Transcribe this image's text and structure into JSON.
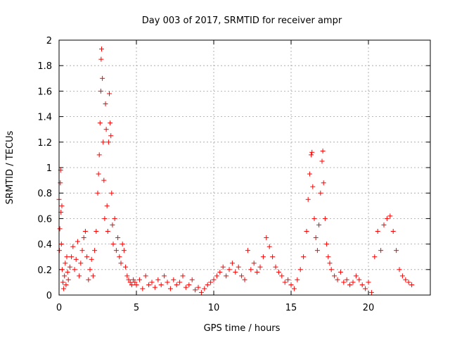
{
  "chart_data": {
    "type": "scatter",
    "title": "Day 003 of 2017, SRMTID for receiver ampr",
    "xlabel": "GPS time / hours",
    "ylabel": "SRMTID / TECUs",
    "xlim": [
      0,
      24
    ],
    "ylim": [
      0,
      2
    ],
    "x_ticks": [
      "0",
      "5",
      "10",
      "15",
      "20"
    ],
    "x_tick_values": [
      0,
      5,
      10,
      15,
      20
    ],
    "y_ticks": [
      "0",
      "0.2",
      "0.4",
      "0.6",
      "0.8",
      "1",
      "1.2",
      "1.4",
      "1.6",
      "1.8",
      "2"
    ],
    "y_tick_values": [
      0,
      0.2,
      0.4,
      0.6,
      0.8,
      1.0,
      1.2,
      1.4,
      1.6,
      1.8,
      2.0
    ],
    "grid": true,
    "marker": "plus",
    "color": "#ff0000",
    "series": [
      {
        "points": [
          [
            0.0,
            0.75
          ],
          [
            0.02,
            0.35
          ],
          [
            0.05,
            0.52
          ],
          [
            0.08,
            0.88
          ],
          [
            0.1,
            0.98
          ],
          [
            0.12,
            0.65
          ],
          [
            0.15,
            0.4
          ],
          [
            0.18,
            0.7
          ],
          [
            0.2,
            0.2
          ],
          [
            0.25,
            0.1
          ],
          [
            0.3,
            0.05
          ],
          [
            0.35,
            0.15
          ],
          [
            0.4,
            0.25
          ],
          [
            0.45,
            0.08
          ],
          [
            0.5,
            0.3
          ],
          [
            0.55,
            0.18
          ],
          [
            0.6,
            0.12
          ],
          [
            0.7,
            0.22
          ],
          [
            0.8,
            0.3
          ],
          [
            0.9,
            0.38
          ],
          [
            1.0,
            0.2
          ],
          [
            1.1,
            0.28
          ],
          [
            1.2,
            0.42
          ],
          [
            1.3,
            0.15
          ],
          [
            1.4,
            0.25
          ],
          [
            1.5,
            0.35
          ],
          [
            1.6,
            0.45
          ],
          [
            1.7,
            0.5
          ],
          [
            1.8,
            0.3
          ],
          [
            1.9,
            0.12
          ],
          [
            2.0,
            0.2
          ],
          [
            2.1,
            0.28
          ],
          [
            2.2,
            0.15
          ],
          [
            2.3,
            0.35
          ],
          [
            2.4,
            0.5
          ],
          [
            2.5,
            0.8
          ],
          [
            2.55,
            0.95
          ],
          [
            2.6,
            1.1
          ],
          [
            2.65,
            1.35
          ],
          [
            2.7,
            1.6
          ],
          [
            2.72,
            1.85
          ],
          [
            2.75,
            1.93
          ],
          [
            2.8,
            1.7
          ],
          [
            2.85,
            1.2
          ],
          [
            2.9,
            0.9
          ],
          [
            2.95,
            0.6
          ],
          [
            3.0,
            1.5
          ],
          [
            3.05,
            1.3
          ],
          [
            3.1,
            0.7
          ],
          [
            3.15,
            0.5
          ],
          [
            3.2,
            1.2
          ],
          [
            3.25,
            1.58
          ],
          [
            3.3,
            1.35
          ],
          [
            3.35,
            1.25
          ],
          [
            3.4,
            0.8
          ],
          [
            3.45,
            0.55
          ],
          [
            3.5,
            0.4
          ],
          [
            3.6,
            0.6
          ],
          [
            3.7,
            0.35
          ],
          [
            3.8,
            0.45
          ],
          [
            3.9,
            0.3
          ],
          [
            4.0,
            0.25
          ],
          [
            4.1,
            0.4
          ],
          [
            4.2,
            0.35
          ],
          [
            4.3,
            0.22
          ],
          [
            4.4,
            0.15
          ],
          [
            4.5,
            0.12
          ],
          [
            4.6,
            0.1
          ],
          [
            4.7,
            0.08
          ],
          [
            4.8,
            0.12
          ],
          [
            4.9,
            0.1
          ],
          [
            5.0,
            0.08
          ],
          [
            5.2,
            0.12
          ],
          [
            5.4,
            0.05
          ],
          [
            5.6,
            0.15
          ],
          [
            5.8,
            0.08
          ],
          [
            6.0,
            0.1
          ],
          [
            6.2,
            0.06
          ],
          [
            6.4,
            0.12
          ],
          [
            6.6,
            0.08
          ],
          [
            6.8,
            0.15
          ],
          [
            7.0,
            0.1
          ],
          [
            7.2,
            0.05
          ],
          [
            7.4,
            0.12
          ],
          [
            7.6,
            0.08
          ],
          [
            7.8,
            0.1
          ],
          [
            8.0,
            0.15
          ],
          [
            8.2,
            0.06
          ],
          [
            8.4,
            0.08
          ],
          [
            8.6,
            0.12
          ],
          [
            8.8,
            0.04
          ],
          [
            9.0,
            0.06
          ],
          [
            9.2,
            0.02
          ],
          [
            9.4,
            0.05
          ],
          [
            9.6,
            0.08
          ],
          [
            9.8,
            0.1
          ],
          [
            10.0,
            0.12
          ],
          [
            10.2,
            0.15
          ],
          [
            10.4,
            0.18
          ],
          [
            10.6,
            0.22
          ],
          [
            10.8,
            0.15
          ],
          [
            11.0,
            0.2
          ],
          [
            11.2,
            0.25
          ],
          [
            11.4,
            0.18
          ],
          [
            11.6,
            0.22
          ],
          [
            11.8,
            0.15
          ],
          [
            12.0,
            0.12
          ],
          [
            12.2,
            0.35
          ],
          [
            12.4,
            0.2
          ],
          [
            12.6,
            0.25
          ],
          [
            12.8,
            0.18
          ],
          [
            13.0,
            0.22
          ],
          [
            13.2,
            0.3
          ],
          [
            13.4,
            0.45
          ],
          [
            13.6,
            0.38
          ],
          [
            13.8,
            0.3
          ],
          [
            14.0,
            0.22
          ],
          [
            14.2,
            0.18
          ],
          [
            14.4,
            0.15
          ],
          [
            14.6,
            0.1
          ],
          [
            14.8,
            0.12
          ],
          [
            15.0,
            0.08
          ],
          [
            15.2,
            0.05
          ],
          [
            15.4,
            0.12
          ],
          [
            15.6,
            0.2
          ],
          [
            15.8,
            0.3
          ],
          [
            16.0,
            0.5
          ],
          [
            16.1,
            0.75
          ],
          [
            16.2,
            0.95
          ],
          [
            16.3,
            1.1
          ],
          [
            16.35,
            1.12
          ],
          [
            16.4,
            0.85
          ],
          [
            16.5,
            0.6
          ],
          [
            16.6,
            0.45
          ],
          [
            16.7,
            0.35
          ],
          [
            16.8,
            0.55
          ],
          [
            16.9,
            0.8
          ],
          [
            17.0,
            1.05
          ],
          [
            17.05,
            1.13
          ],
          [
            17.1,
            0.88
          ],
          [
            17.2,
            0.6
          ],
          [
            17.3,
            0.4
          ],
          [
            17.4,
            0.3
          ],
          [
            17.5,
            0.25
          ],
          [
            17.6,
            0.2
          ],
          [
            17.8,
            0.15
          ],
          [
            18.0,
            0.12
          ],
          [
            18.2,
            0.18
          ],
          [
            18.4,
            0.1
          ],
          [
            18.6,
            0.12
          ],
          [
            18.8,
            0.08
          ],
          [
            19.0,
            0.1
          ],
          [
            19.2,
            0.15
          ],
          [
            19.4,
            0.12
          ],
          [
            19.6,
            0.08
          ],
          [
            19.8,
            0.05
          ],
          [
            20.0,
            0.1
          ],
          [
            20.2,
            0.02
          ],
          [
            20.4,
            0.3
          ],
          [
            20.6,
            0.5
          ],
          [
            20.8,
            0.35
          ],
          [
            21.0,
            0.55
          ],
          [
            21.2,
            0.6
          ],
          [
            21.4,
            0.62
          ],
          [
            21.6,
            0.5
          ],
          [
            21.8,
            0.35
          ],
          [
            22.0,
            0.2
          ],
          [
            22.2,
            0.15
          ],
          [
            22.4,
            0.12
          ],
          [
            22.6,
            0.1
          ],
          [
            22.8,
            0.08
          ]
        ]
      }
    ]
  }
}
